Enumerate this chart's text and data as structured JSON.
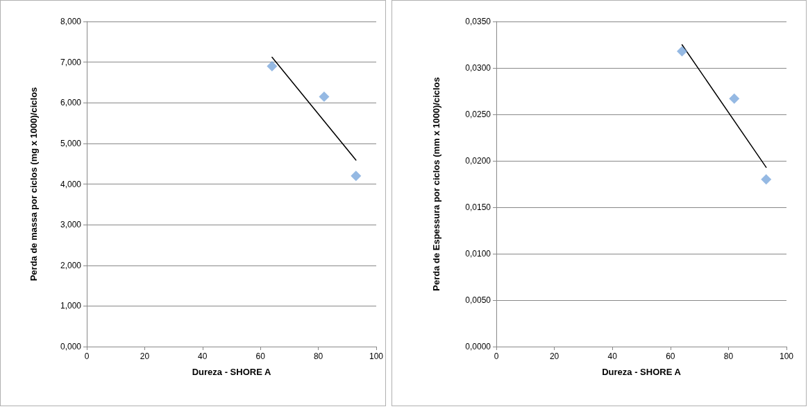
{
  "chart_data": [
    {
      "type": "scatter",
      "xlabel": "Dureza - SHORE A",
      "ylabel": "Perda de massa por ciclos (mg x 1000)/ciclos",
      "marker": "diamond",
      "grid": "y",
      "xlim": [
        0,
        100
      ],
      "xticks": [
        0,
        20,
        40,
        60,
        80,
        100
      ],
      "ylim": [
        0,
        8
      ],
      "yticks": [
        {
          "value": 0,
          "label": "0,000"
        },
        {
          "value": 1,
          "label": "1,000"
        },
        {
          "value": 2,
          "label": "2,000"
        },
        {
          "value": 3,
          "label": "3,000"
        },
        {
          "value": 4,
          "label": "4,000"
        },
        {
          "value": 5,
          "label": "5,000"
        },
        {
          "value": 6,
          "label": "6,000"
        },
        {
          "value": 7,
          "label": "7,000"
        },
        {
          "value": 8,
          "label": "8,000"
        }
      ],
      "series": [
        {
          "color": "#7aa7dc",
          "x": [
            64,
            82,
            93
          ],
          "values": [
            6.9,
            6.15,
            4.2
          ]
        },
        {
          "type": "line",
          "color": "#000000",
          "marker": "none",
          "x": [
            64,
            93
          ],
          "values": [
            7.12,
            4.59
          ]
        }
      ]
    },
    {
      "type": "scatter",
      "xlabel": "Dureza - SHORE A",
      "ylabel": "Perda de Espessura por ciclos (mm x 1000)/ciclos",
      "marker": "diamond",
      "grid": "y",
      "xlim": [
        0,
        100
      ],
      "xticks": [
        0,
        20,
        40,
        60,
        80,
        100
      ],
      "ylim": [
        0,
        0.035
      ],
      "yticks": [
        {
          "value": 0,
          "label": "0,0000"
        },
        {
          "value": 0.005,
          "label": "0,0050"
        },
        {
          "value": 0.01,
          "label": "0,0100"
        },
        {
          "value": 0.015,
          "label": "0,0150"
        },
        {
          "value": 0.02,
          "label": "0,0200"
        },
        {
          "value": 0.025,
          "label": "0,0250"
        },
        {
          "value": 0.03,
          "label": "0,0300"
        },
        {
          "value": 0.035,
          "label": "0,0350"
        }
      ],
      "series": [
        {
          "color": "#7aa7dc",
          "x": [
            64,
            82,
            93
          ],
          "values": [
            0.0318,
            0.0267,
            0.018
          ]
        },
        {
          "type": "line",
          "color": "#000000",
          "marker": "none",
          "x": [
            64,
            93
          ],
          "values": [
            0.0325,
            0.0193
          ]
        }
      ]
    }
  ]
}
